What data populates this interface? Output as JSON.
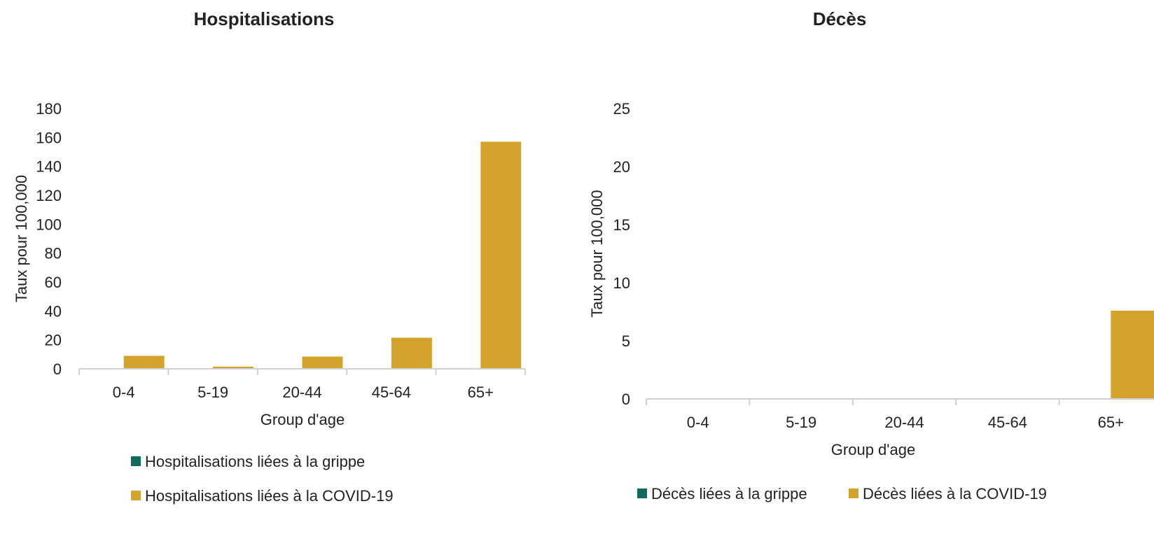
{
  "colors": {
    "flu": "#0e6b5e",
    "covid": "#d4a32b",
    "axis": "#d0d0d0",
    "text": "#222222"
  },
  "chart_data": [
    {
      "type": "bar",
      "title": "Hospitalisations",
      "xlabel": "Group d'age",
      "ylabel": "Taux pour 100,000",
      "categories": [
        "0-4",
        "5-19",
        "20-44",
        "45-64",
        "65+"
      ],
      "ylim": [
        0,
        180
      ],
      "yticks": [
        "0",
        "20",
        "40",
        "60",
        "80",
        "100",
        "120",
        "140",
        "160",
        "180"
      ],
      "grid": false,
      "legend_position": "bottom",
      "series": [
        {
          "name": "Hospitalisations liées à la grippe",
          "color_key": "flu",
          "values": [
            0,
            0,
            0.3,
            0,
            0.5
          ]
        },
        {
          "name": "Hospitalisations liées à la COVID-19",
          "color_key": "covid",
          "values": [
            9,
            1.5,
            8.5,
            21.5,
            157
          ]
        }
      ]
    },
    {
      "type": "bar",
      "title": "Décès",
      "xlabel": "Group d'age",
      "ylabel": "Taux pour 100,000",
      "categories": [
        "0-4",
        "5-19",
        "20-44",
        "45-64",
        "65+"
      ],
      "ylim": [
        0,
        25
      ],
      "yticks": [
        "0",
        "5",
        "10",
        "15",
        "20",
        "25"
      ],
      "grid": false,
      "legend_position": "bottom",
      "series": [
        {
          "name": "Décès liées à la grippe",
          "color_key": "flu",
          "values": [
            0,
            0,
            0,
            0,
            0
          ]
        },
        {
          "name": "Décès liées à la COVID-19",
          "color_key": "covid",
          "values": [
            0,
            0,
            0,
            0,
            7.6
          ]
        }
      ]
    }
  ]
}
